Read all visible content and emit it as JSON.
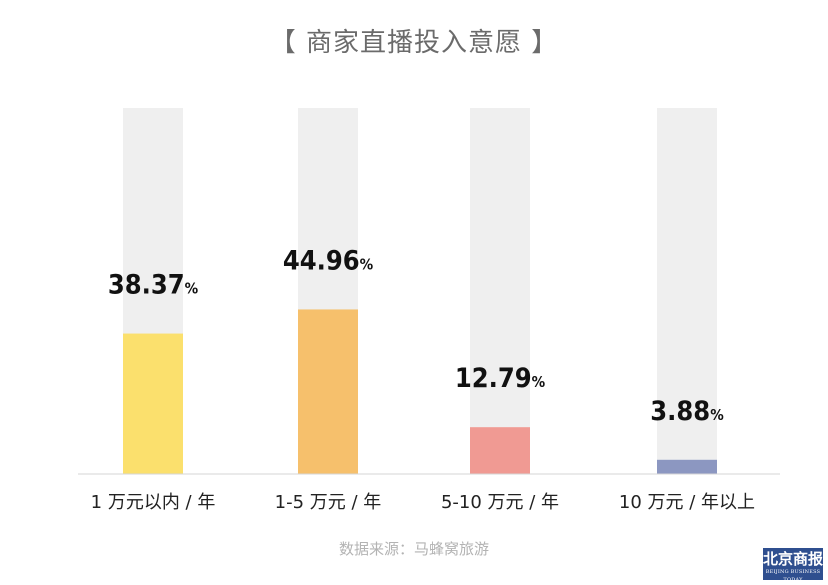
{
  "title": "【 商家直播投入意愿 】",
  "source": "数据来源：马蜂窝旅游",
  "logo": {
    "cn": "北京商报",
    "en": "BEIJING BUSINESS TODAY"
  },
  "chart_data": {
    "type": "bar",
    "title": "【 商家直播投入意愿 】",
    "categories": [
      "1 万元以内 / 年",
      "1-5 万元 / 年",
      "5-10 万元 / 年",
      "10 万元 / 年以上"
    ],
    "values": [
      38.37,
      44.96,
      12.79,
      3.88
    ],
    "value_suffix": "%",
    "ylim": [
      0,
      100
    ],
    "colors": [
      "#fbe06d",
      "#f6c06c",
      "#f09a93",
      "#8c97c1"
    ],
    "background_bar_color": "#efefef",
    "grid": false,
    "legend": "none"
  }
}
